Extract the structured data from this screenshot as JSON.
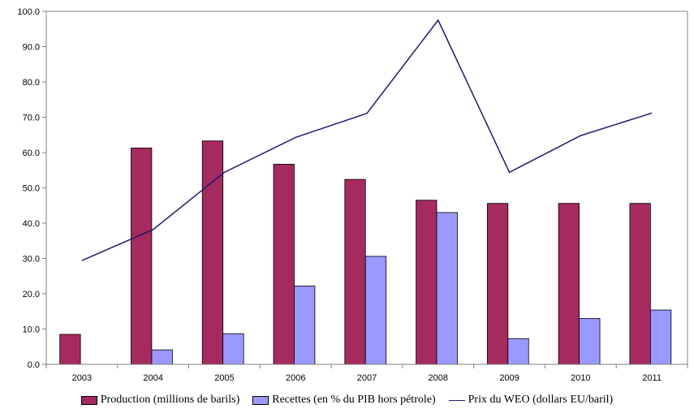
{
  "chart_data": {
    "type": "bar",
    "categories": [
      "2003",
      "2004",
      "2005",
      "2006",
      "2007",
      "2008",
      "2009",
      "2010",
      "2011"
    ],
    "series": [
      {
        "name": "Production (millions de barils)",
        "kind": "bar",
        "color": "#a52a5e",
        "values": [
          8.5,
          61.3,
          63.3,
          56.7,
          52.4,
          46.5,
          45.6,
          45.6,
          45.6
        ]
      },
      {
        "name": "Recettes (en % du PIB hors pétrole)",
        "kind": "bar",
        "color": "#9999ff",
        "values": [
          null,
          4.1,
          8.7,
          22.2,
          30.6,
          43.0,
          7.3,
          13.0,
          15.4
        ]
      },
      {
        "name": "Prix du WEO (dollars EU/baril)",
        "kind": "line",
        "color": "#1f1a6e",
        "values": [
          29.4,
          38.2,
          54.4,
          64.3,
          71.1,
          97.5,
          54.4,
          64.8,
          71.2
        ]
      }
    ],
    "ylim": [
      0,
      100
    ],
    "yticks": [
      "0.0",
      "10.0",
      "20.0",
      "30.0",
      "40.0",
      "50.0",
      "60.0",
      "70.0",
      "80.0",
      "90.0",
      "100.0"
    ],
    "grid": false,
    "legend_position": "bottom",
    "title": "",
    "xlabel": "",
    "ylabel": ""
  }
}
